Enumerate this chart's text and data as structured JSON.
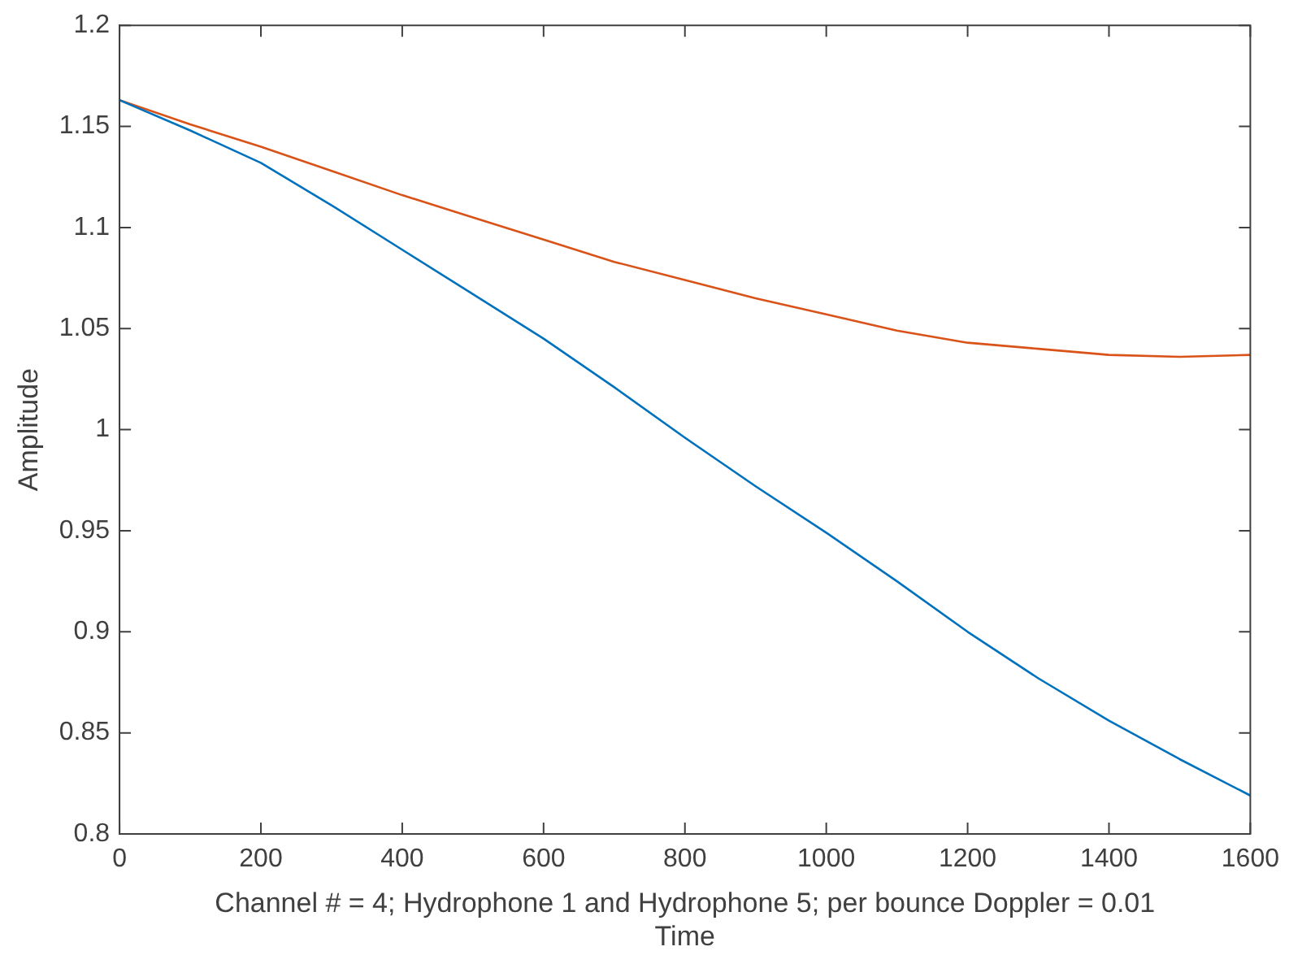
{
  "chart_data": {
    "type": "line",
    "xlabel": "Channel # = 4; Hydrophone 1 and Hydrophone 5; per bounce Doppler = 0.01\nTime",
    "ylabel": "Amplitude",
    "xlim": [
      0,
      1600
    ],
    "xticks": [
      0,
      200,
      400,
      600,
      800,
      1000,
      1200,
      1400,
      1600
    ],
    "ylim": [
      0.8,
      1.2
    ],
    "yticks": [
      0.8,
      0.85,
      0.9,
      0.95,
      1,
      1.05,
      1.1,
      1.15,
      1.2
    ],
    "grid": false,
    "legend": false,
    "marker": "none",
    "line_style": "solid",
    "series": [
      {
        "color": "#0072bd",
        "x": [
          0,
          100,
          200,
          300,
          400,
          500,
          600,
          700,
          800,
          900,
          1000,
          1100,
          1200,
          1300,
          1400,
          1500,
          1600
        ],
        "values": [
          1.163,
          1.148,
          1.132,
          1.111,
          1.089,
          1.067,
          1.045,
          1.021,
          0.996,
          0.972,
          0.949,
          0.925,
          0.9,
          0.877,
          0.856,
          0.837,
          0.819
        ]
      },
      {
        "color": "#d95319",
        "x": [
          0,
          100,
          200,
          300,
          400,
          500,
          600,
          700,
          800,
          900,
          1000,
          1100,
          1200,
          1300,
          1400,
          1500,
          1600
        ],
        "values": [
          1.163,
          1.151,
          1.14,
          1.128,
          1.116,
          1.105,
          1.094,
          1.083,
          1.074,
          1.065,
          1.057,
          1.049,
          1.043,
          1.04,
          1.037,
          1.036,
          1.037
        ]
      }
    ]
  }
}
